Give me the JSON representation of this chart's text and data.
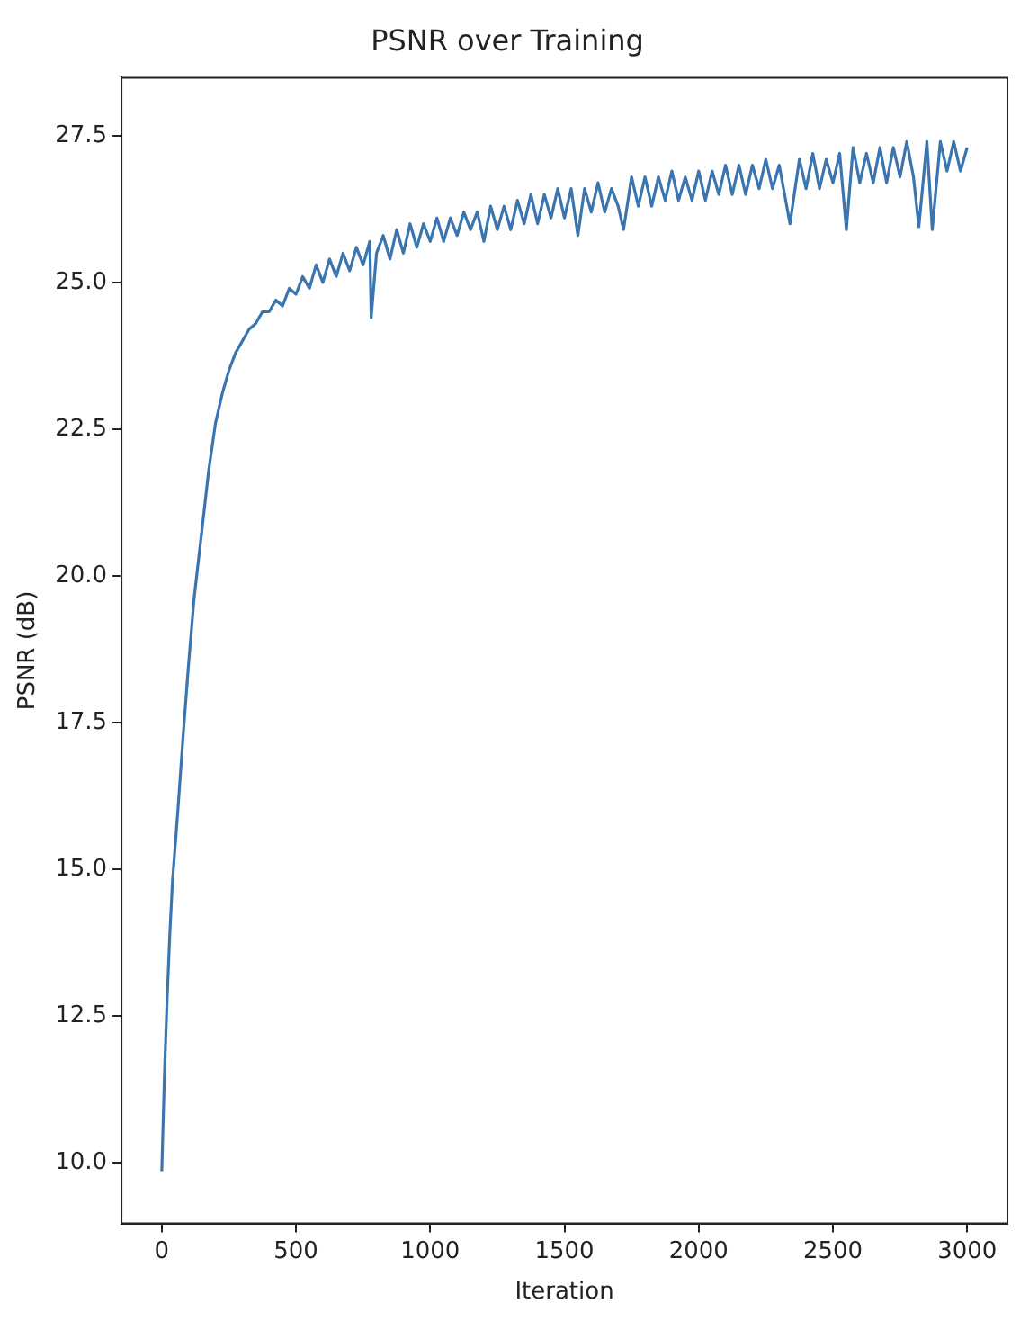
{
  "chart_data": {
    "type": "line",
    "title": "PSNR over Training",
    "xlabel": "Iteration",
    "ylabel": "PSNR (dB)",
    "xlim": [
      -150,
      3150
    ],
    "xticks": [
      0,
      500,
      1000,
      1500,
      2000,
      2500,
      3000
    ],
    "ylim": [
      8.96,
      28.49
    ],
    "yticks": [
      {
        "value": 10,
        "label": "10.0"
      },
      {
        "value": 12.5,
        "label": "12.5"
      },
      {
        "value": 15,
        "label": "15.0"
      },
      {
        "value": 17.5,
        "label": "17.5"
      },
      {
        "value": 20,
        "label": "20.0"
      },
      {
        "value": 22.5,
        "label": "22.5"
      },
      {
        "value": 25,
        "label": "25.0"
      },
      {
        "value": 27.5,
        "label": "27.5"
      }
    ],
    "grid": false,
    "legend": false,
    "marker": "none",
    "line_style": "solid",
    "series": [
      {
        "color": "#3a75af",
        "x": [
          0,
          10,
          20,
          30,
          40,
          60,
          80,
          100,
          120,
          150,
          175,
          200,
          225,
          250,
          275,
          300,
          325,
          350,
          375,
          400,
          425,
          450,
          475,
          500,
          525,
          550,
          575,
          600,
          625,
          650,
          675,
          700,
          725,
          750,
          775,
          780,
          800,
          825,
          850,
          875,
          900,
          925,
          950,
          975,
          1000,
          1025,
          1050,
          1075,
          1100,
          1125,
          1150,
          1175,
          1200,
          1225,
          1250,
          1275,
          1300,
          1325,
          1350,
          1375,
          1400,
          1425,
          1450,
          1475,
          1500,
          1525,
          1550,
          1575,
          1600,
          1625,
          1650,
          1675,
          1700,
          1720,
          1750,
          1775,
          1800,
          1825,
          1850,
          1875,
          1900,
          1925,
          1950,
          1975,
          2000,
          2025,
          2050,
          2075,
          2100,
          2125,
          2150,
          2175,
          2200,
          2225,
          2250,
          2275,
          2300,
          2340,
          2375,
          2400,
          2425,
          2450,
          2475,
          2500,
          2525,
          2550,
          2575,
          2600,
          2625,
          2650,
          2675,
          2700,
          2725,
          2750,
          2775,
          2800,
          2820,
          2850,
          2870,
          2900,
          2925,
          2950,
          2975,
          3000
        ],
        "values": [
          9.85,
          11.5,
          12.8,
          13.9,
          14.8,
          16.0,
          17.3,
          18.5,
          19.6,
          20.8,
          21.8,
          22.6,
          23.1,
          23.5,
          23.8,
          24.0,
          24.2,
          24.3,
          24.5,
          24.5,
          24.7,
          24.6,
          24.9,
          24.8,
          25.1,
          24.9,
          25.3,
          25.0,
          25.4,
          25.1,
          25.5,
          25.2,
          25.6,
          25.3,
          25.7,
          24.4,
          25.5,
          25.8,
          25.4,
          25.9,
          25.5,
          26.0,
          25.6,
          26.0,
          25.7,
          26.1,
          25.7,
          26.1,
          25.8,
          26.2,
          25.9,
          26.2,
          25.7,
          26.3,
          25.9,
          26.3,
          25.9,
          26.4,
          26.0,
          26.5,
          26.0,
          26.5,
          26.1,
          26.6,
          26.1,
          26.6,
          25.8,
          26.6,
          26.2,
          26.7,
          26.2,
          26.6,
          26.3,
          25.9,
          26.8,
          26.3,
          26.8,
          26.3,
          26.8,
          26.4,
          26.9,
          26.4,
          26.8,
          26.4,
          26.9,
          26.4,
          26.9,
          26.5,
          27.0,
          26.5,
          27.0,
          26.5,
          27.0,
          26.6,
          27.1,
          26.6,
          27.0,
          26.0,
          27.1,
          26.6,
          27.2,
          26.6,
          27.1,
          26.7,
          27.2,
          25.9,
          27.3,
          26.7,
          27.2,
          26.7,
          27.3,
          26.7,
          27.3,
          26.8,
          27.4,
          26.8,
          25.95,
          27.4,
          25.9,
          27.4,
          26.9,
          27.4,
          26.9,
          27.3
        ]
      }
    ]
  }
}
